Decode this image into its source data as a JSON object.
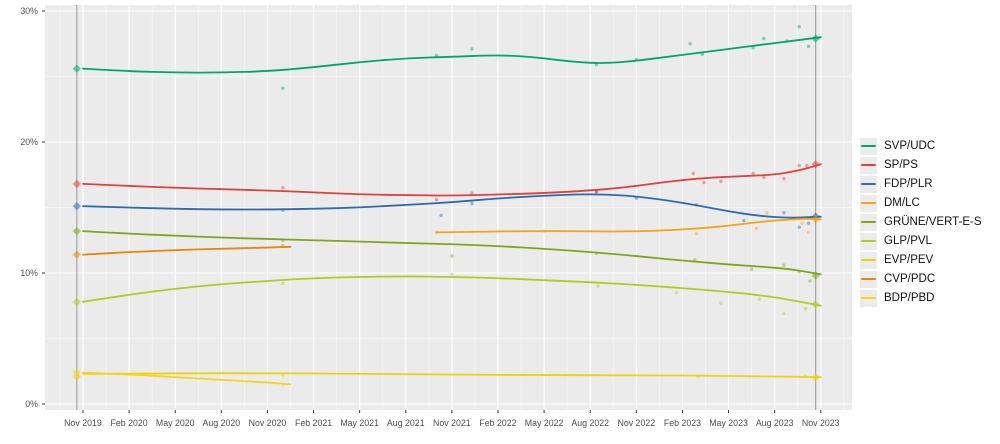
{
  "chart_data": {
    "type": "line",
    "title": "",
    "xlabel": "",
    "ylabel": "",
    "grid": true,
    "legend_position": "right",
    "panel": {
      "bg": "#ebebeb",
      "grid_major": "#ffffff",
      "grid_minor": "#f7f7f7",
      "axis_text_color": "#4d4d4d",
      "tick_color": "#333333"
    },
    "y_axis": {
      "tick_labels": [
        "30%",
        "20%",
        "10%",
        "0%"
      ],
      "tick_values": [
        30,
        20,
        10,
        0
      ],
      "minor_values": [
        25,
        15,
        5
      ],
      "range": [
        -0.5,
        30.5
      ]
    },
    "x_axis": {
      "tick_labels": [
        "Nov 2019",
        "Feb 2020",
        "May 2020",
        "Aug 2020",
        "Nov 2020",
        "Feb 2021",
        "May 2021",
        "Aug 2021",
        "Nov 2021",
        "Feb 2022",
        "May 2022",
        "Aug 2022",
        "Nov 2022",
        "Feb 2023",
        "May 2023",
        "Aug 2023",
        "Nov 2023"
      ],
      "tick_months": [
        0,
        3,
        6,
        9,
        12,
        15,
        18,
        21,
        24,
        27,
        30,
        33,
        36,
        39,
        42,
        45,
        48
      ],
      "range_months": [
        -2.5,
        50.0
      ]
    },
    "election_lines": {
      "months": [
        -0.4,
        47.67
      ],
      "color": "#999999"
    },
    "series": [
      {
        "name": "SVP/UDC",
        "color": "#00a573",
        "line": [
          [
            0,
            25.6
          ],
          [
            3,
            25.4
          ],
          [
            6,
            25.3
          ],
          [
            9,
            25.3
          ],
          [
            12,
            25.4
          ],
          [
            15,
            25.7
          ],
          [
            18,
            26.1
          ],
          [
            21,
            26.4
          ],
          [
            24,
            26.5
          ],
          [
            26,
            26.6
          ],
          [
            28,
            26.6
          ],
          [
            30,
            26.4
          ],
          [
            32,
            26.1
          ],
          [
            34,
            26.0
          ],
          [
            36,
            26.2
          ],
          [
            38,
            26.5
          ],
          [
            40,
            26.8
          ],
          [
            42,
            27.1
          ],
          [
            44,
            27.4
          ],
          [
            46,
            27.7
          ],
          [
            48,
            28.0
          ]
        ],
        "points": [
          [
            13,
            24.1
          ],
          [
            23,
            26.6
          ],
          [
            25.3,
            27.1
          ],
          [
            33.4,
            25.9
          ],
          [
            36,
            26.3
          ],
          [
            39.5,
            27.5
          ],
          [
            40.3,
            26.7
          ],
          [
            43.6,
            27.2
          ],
          [
            44.3,
            27.9
          ],
          [
            45.8,
            27.7
          ],
          [
            46.6,
            28.8
          ],
          [
            47.2,
            27.3
          ]
        ],
        "elections": [
          [
            -0.4,
            25.6
          ],
          [
            47.67,
            27.9
          ]
        ]
      },
      {
        "name": "SP/PS",
        "color": "#e0413e",
        "line": [
          [
            0,
            16.8
          ],
          [
            3,
            16.65
          ],
          [
            6,
            16.5
          ],
          [
            9,
            16.4
          ],
          [
            12,
            16.3
          ],
          [
            15,
            16.15
          ],
          [
            18,
            16.0
          ],
          [
            21,
            15.95
          ],
          [
            24,
            15.9
          ],
          [
            27,
            16.0
          ],
          [
            30,
            16.1
          ],
          [
            33,
            16.3
          ],
          [
            35,
            16.5
          ],
          [
            37,
            16.8
          ],
          [
            39,
            17.1
          ],
          [
            41,
            17.3
          ],
          [
            43,
            17.4
          ],
          [
            45,
            17.5
          ],
          [
            46.5,
            17.8
          ],
          [
            48,
            18.3
          ]
        ],
        "points": [
          [
            13,
            16.5
          ],
          [
            23,
            15.6
          ],
          [
            25.3,
            16.1
          ],
          [
            33.4,
            16.2
          ],
          [
            39.7,
            17.6
          ],
          [
            40.4,
            16.9
          ],
          [
            41.5,
            17.0
          ],
          [
            43.6,
            17.6
          ],
          [
            44.3,
            17.3
          ],
          [
            45.6,
            17.2
          ],
          [
            46.6,
            18.2
          ],
          [
            47.1,
            18.2
          ]
        ],
        "elections": [
          [
            -0.4,
            16.8
          ],
          [
            47.67,
            18.3
          ]
        ]
      },
      {
        "name": "FDP/PLR",
        "color": "#2d6ab0",
        "line": [
          [
            0,
            15.1
          ],
          [
            3,
            15.0
          ],
          [
            6,
            14.9
          ],
          [
            9,
            14.85
          ],
          [
            12,
            14.85
          ],
          [
            15,
            14.9
          ],
          [
            18,
            15.0
          ],
          [
            21,
            15.2
          ],
          [
            24,
            15.4
          ],
          [
            27,
            15.7
          ],
          [
            30,
            15.9
          ],
          [
            32,
            16.0
          ],
          [
            34,
            16.0
          ],
          [
            36,
            15.85
          ],
          [
            38,
            15.55
          ],
          [
            40,
            15.15
          ],
          [
            42,
            14.7
          ],
          [
            44,
            14.35
          ],
          [
            46,
            14.2
          ],
          [
            48,
            14.3
          ]
        ],
        "points": [
          [
            13,
            14.8
          ],
          [
            23.3,
            14.4
          ],
          [
            25.3,
            15.3
          ],
          [
            33.4,
            16.2
          ],
          [
            36,
            15.7
          ],
          [
            39.9,
            15.2
          ],
          [
            43,
            14.0
          ],
          [
            45.6,
            14.6
          ],
          [
            46.6,
            13.5
          ],
          [
            47.2,
            13.8
          ]
        ],
        "elections": [
          [
            -0.4,
            15.1
          ],
          [
            47.67,
            14.3
          ]
        ]
      },
      {
        "name": "DM/LC",
        "color": "#f2a416",
        "line": [
          [
            23,
            13.1
          ],
          [
            26,
            13.15
          ],
          [
            29,
            13.2
          ],
          [
            32,
            13.2
          ],
          [
            35,
            13.15
          ],
          [
            38,
            13.25
          ],
          [
            40,
            13.4
          ],
          [
            42,
            13.6
          ],
          [
            44,
            13.9
          ],
          [
            45.5,
            14.05
          ],
          [
            47,
            14.15
          ],
          [
            48,
            14.1
          ]
        ],
        "points": [
          [
            23,
            13.1
          ],
          [
            30,
            13.2
          ],
          [
            39.9,
            13.0
          ],
          [
            43.8,
            13.4
          ],
          [
            44.5,
            14.6
          ],
          [
            46.8,
            13.8
          ],
          [
            47.2,
            13.1
          ]
        ],
        "elections": [
          [
            47.67,
            14.1
          ]
        ]
      },
      {
        "name": "GRÜNE/VERT-E-S",
        "color": "#7fa618",
        "line": [
          [
            0,
            13.2
          ],
          [
            3,
            13.0
          ],
          [
            6,
            12.85
          ],
          [
            9,
            12.7
          ],
          [
            12,
            12.6
          ],
          [
            15,
            12.5
          ],
          [
            18,
            12.4
          ],
          [
            21,
            12.3
          ],
          [
            24,
            12.2
          ],
          [
            27,
            12.05
          ],
          [
            30,
            11.85
          ],
          [
            33,
            11.6
          ],
          [
            36,
            11.3
          ],
          [
            38,
            11.05
          ],
          [
            40,
            10.85
          ],
          [
            42,
            10.65
          ],
          [
            44,
            10.5
          ],
          [
            46,
            10.3
          ],
          [
            47,
            10.1
          ],
          [
            48,
            9.9
          ]
        ],
        "points": [
          [
            13,
            12.5
          ],
          [
            24,
            11.3
          ],
          [
            33.4,
            11.5
          ],
          [
            39.8,
            11.0
          ],
          [
            43.5,
            10.3
          ],
          [
            45.6,
            10.6
          ],
          [
            46.6,
            10.1
          ],
          [
            47.3,
            9.4
          ]
        ],
        "elections": [
          [
            -0.4,
            13.2
          ],
          [
            47.67,
            9.8
          ]
        ]
      },
      {
        "name": "GLP/PVL",
        "color": "#aecd22",
        "line": [
          [
            0,
            7.8
          ],
          [
            3,
            8.35
          ],
          [
            6,
            8.8
          ],
          [
            9,
            9.15
          ],
          [
            12,
            9.4
          ],
          [
            15,
            9.6
          ],
          [
            18,
            9.7
          ],
          [
            21,
            9.75
          ],
          [
            24,
            9.7
          ],
          [
            27,
            9.6
          ],
          [
            30,
            9.45
          ],
          [
            33,
            9.3
          ],
          [
            36,
            9.1
          ],
          [
            39,
            8.85
          ],
          [
            41,
            8.65
          ],
          [
            43,
            8.45
          ],
          [
            45,
            8.15
          ],
          [
            46.5,
            7.85
          ],
          [
            48,
            7.5
          ]
        ],
        "points": [
          [
            13,
            9.2
          ],
          [
            24,
            9.9
          ],
          [
            33.5,
            9.0
          ],
          [
            38.6,
            8.5
          ],
          [
            41.5,
            7.7
          ],
          [
            44,
            8.0
          ],
          [
            45.6,
            6.9
          ],
          [
            47,
            7.3
          ]
        ],
        "elections": [
          [
            -0.4,
            7.8
          ],
          [
            47.67,
            7.6
          ]
        ]
      },
      {
        "name": "EVP/PEV",
        "color": "#e9d40c",
        "line": [
          [
            0,
            2.3
          ],
          [
            6,
            2.35
          ],
          [
            12,
            2.35
          ],
          [
            18,
            2.3
          ],
          [
            24,
            2.25
          ],
          [
            30,
            2.2
          ],
          [
            36,
            2.2
          ],
          [
            42,
            2.15
          ],
          [
            48,
            2.05
          ]
        ],
        "points": [
          [
            13,
            2.2
          ],
          [
            40,
            2.1
          ],
          [
            47,
            2.1
          ]
        ],
        "elections": [
          [
            -0.4,
            2.1
          ],
          [
            47.67,
            2.0
          ]
        ]
      },
      {
        "name": "CVP/PDC",
        "color": "#e8850c",
        "line": [
          [
            0,
            11.4
          ],
          [
            3,
            11.6
          ],
          [
            6,
            11.75
          ],
          [
            9,
            11.85
          ],
          [
            12,
            11.95
          ],
          [
            13.5,
            12.0
          ]
        ],
        "points": [
          [
            13,
            12.1
          ]
        ],
        "elections": [
          [
            -0.4,
            11.4
          ]
        ]
      },
      {
        "name": "BDP/PBD",
        "color": "#f7d31c",
        "line": [
          [
            0,
            2.4
          ],
          [
            3,
            2.25
          ],
          [
            6,
            2.05
          ],
          [
            9,
            1.85
          ],
          [
            12,
            1.65
          ],
          [
            13.5,
            1.5
          ]
        ],
        "points": [
          [
            13,
            1.5
          ]
        ],
        "elections": [
          [
            -0.4,
            2.4
          ]
        ]
      }
    ]
  }
}
